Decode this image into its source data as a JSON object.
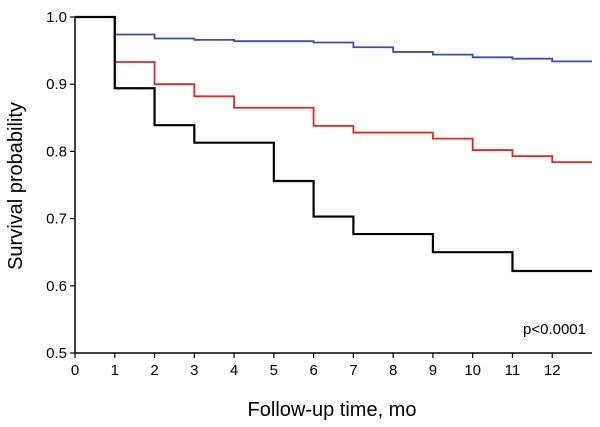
{
  "chart_data": {
    "type": "line",
    "step": true,
    "xlabel": "Follow-up time, mo",
    "ylabel": "Survival probability",
    "xlim": [
      0,
      13
    ],
    "ylim": [
      0.5,
      1.0
    ],
    "xticks": [
      "0",
      "1",
      "2",
      "3",
      "4",
      "5",
      "6",
      "7",
      "8",
      "9",
      "10",
      "11",
      "12"
    ],
    "yticks": [
      "0.5",
      "0.6",
      "0.7",
      "0.8",
      "0.9",
      "1.0"
    ],
    "annotation": "p<0.0001",
    "grid": false,
    "series": [
      {
        "color": "#3a4fa6",
        "x": [
          0,
          1,
          2,
          3,
          4,
          6,
          7,
          8,
          9,
          10,
          11,
          12,
          13
        ],
        "y": [
          1.0,
          0.974,
          0.968,
          0.966,
          0.964,
          0.962,
          0.955,
          0.948,
          0.944,
          0.94,
          0.938,
          0.934,
          0.934
        ]
      },
      {
        "color": "#e8261c",
        "x": [
          0,
          1,
          2,
          3,
          4,
          6,
          7,
          9,
          10,
          11,
          12,
          13
        ],
        "y": [
          1.0,
          0.933,
          0.9,
          0.882,
          0.865,
          0.838,
          0.828,
          0.819,
          0.802,
          0.793,
          0.784,
          0.784
        ]
      },
      {
        "color": "#000000",
        "x": [
          0,
          1,
          2,
          3,
          5,
          6,
          7,
          9,
          11,
          13
        ],
        "y": [
          1.0,
          0.894,
          0.839,
          0.813,
          0.756,
          0.703,
          0.677,
          0.65,
          0.622,
          0.622
        ]
      }
    ]
  }
}
